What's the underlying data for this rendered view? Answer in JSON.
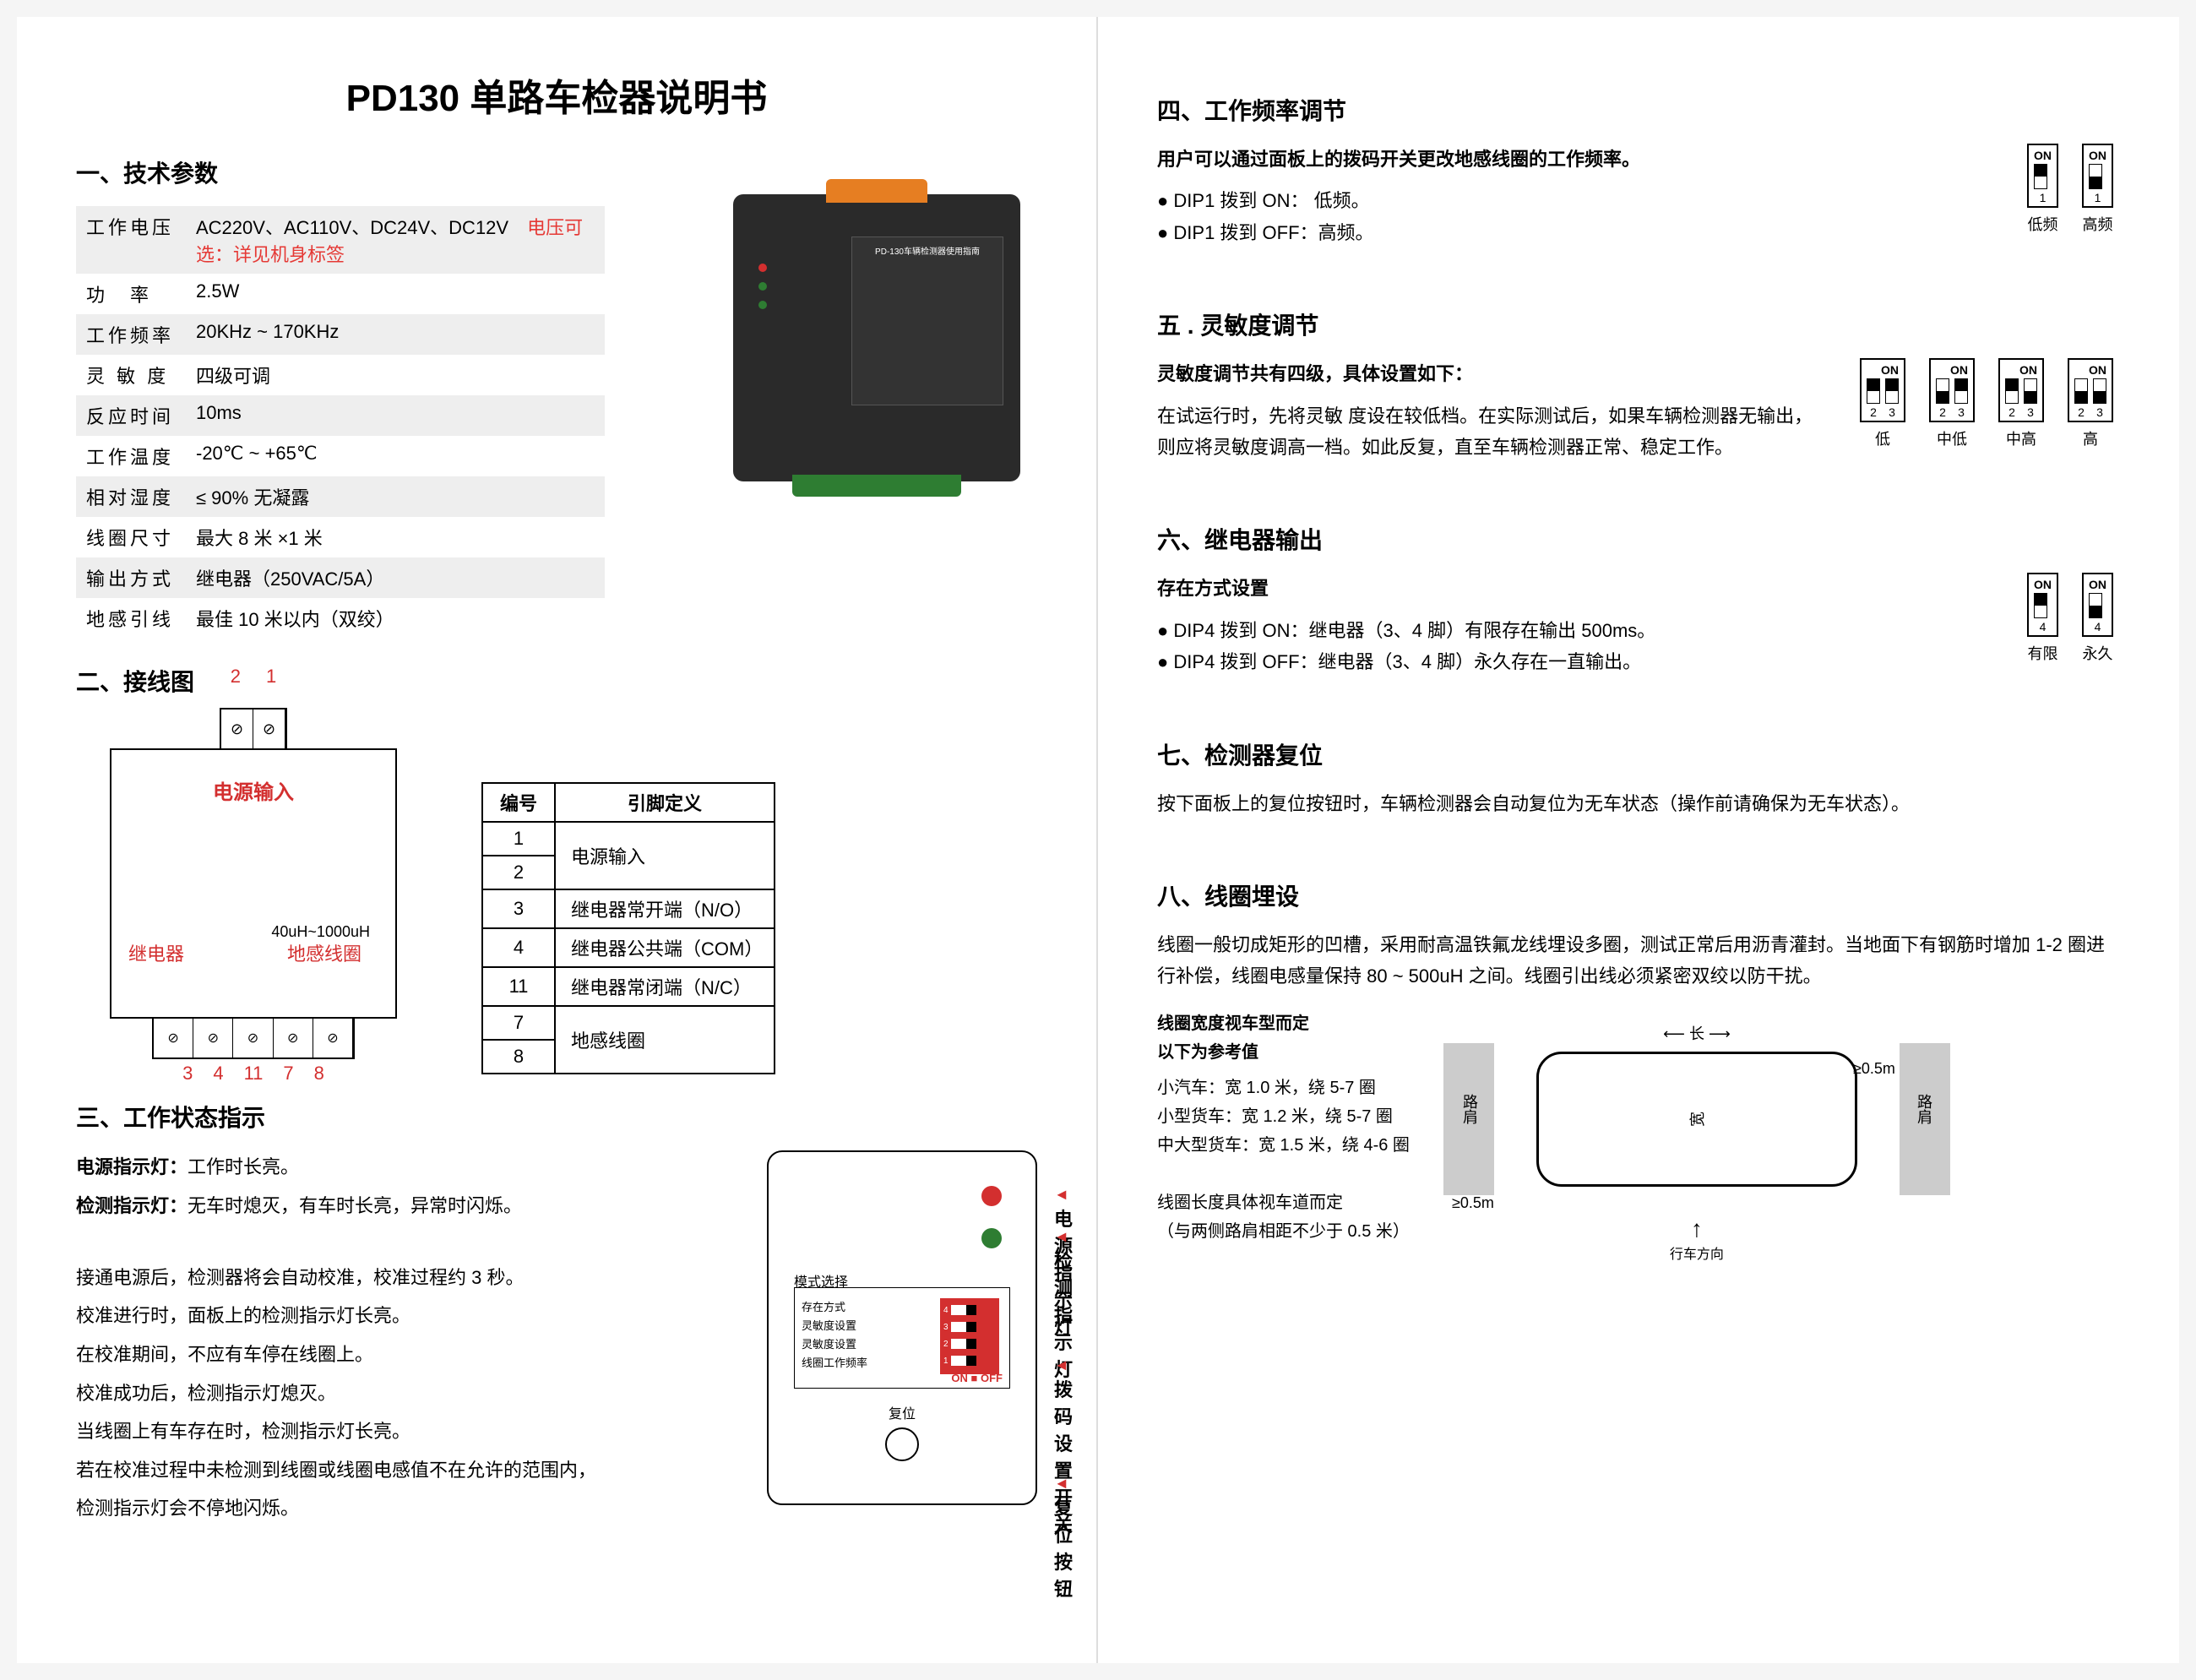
{
  "title": "PD130 单路车检器说明书",
  "sections": {
    "s1": {
      "heading": "一、技术参数"
    },
    "s2": {
      "heading": "二、接线图"
    },
    "s3": {
      "heading": "三、工作状态指示"
    },
    "s4": {
      "heading": "四、工作频率调节"
    },
    "s5": {
      "heading": "五 . 灵敏度调节"
    },
    "s6": {
      "heading": "六、继电器输出"
    },
    "s7": {
      "heading": "七、检测器复位"
    },
    "s8": {
      "heading": "八、线圈埋设"
    }
  },
  "specs": [
    {
      "label": "工作电压",
      "value": "AC220V、AC110V、DC24V、DC12V",
      "note": "电压可选：详见机身标签"
    },
    {
      "label": "功　率",
      "value": "2.5W"
    },
    {
      "label": "工作频率",
      "value": "20KHz ~ 170KHz"
    },
    {
      "label": "灵 敏 度",
      "value": "四级可调"
    },
    {
      "label": "反应时间",
      "value": "10ms"
    },
    {
      "label": "工作温度",
      "value": "-20℃ ~ +65℃"
    },
    {
      "label": "相对湿度",
      "value": "≤ 90% 无凝露"
    },
    {
      "label": "线圈尺寸",
      "value": "最大 8 米 ×1 米"
    },
    {
      "label": "输出方式",
      "value": "继电器（250VAC/5A）"
    },
    {
      "label": "地感引线",
      "value": "最佳 10 米以内（双绞）"
    }
  ],
  "device_label_title": "PD-130车辆检测器使用指南",
  "wiring": {
    "power_input": "电源输入",
    "relay": "继电器",
    "coil": "地感线圈",
    "coil_range": "40uH~1000uH",
    "top_nums": [
      "2",
      "1"
    ],
    "bot_nums": [
      "3",
      "4",
      "11",
      "7",
      "8"
    ]
  },
  "pin_table": {
    "headers": [
      "编号",
      "引脚定义"
    ],
    "rows": [
      {
        "pin": "1",
        "def": "电源输入",
        "rowspan": 2
      },
      {
        "pin": "2"
      },
      {
        "pin": "3",
        "def": "继电器常开端（N/O）"
      },
      {
        "pin": "4",
        "def": "继电器公共端（COM）"
      },
      {
        "pin": "11",
        "def": "继电器常闭端（N/C）"
      },
      {
        "pin": "7",
        "def": "地感线圈",
        "rowspan": 2
      },
      {
        "pin": "8"
      }
    ]
  },
  "status": {
    "power_led_label": "电源指示灯：",
    "power_led_text": "工作时长亮。",
    "detect_led_label": "检测指示灯：",
    "detect_led_text": "无车时熄灭，有车时长亮，异常时闪烁。",
    "para": [
      "接通电源后，检测器将会自动校准，校准过程约 3 秒。",
      "校准进行时，面板上的检测指示灯长亮。",
      "在校准期间，不应有车停在线圈上。",
      "校准成功后，检测指示灯熄灭。",
      "当线圈上有车存在时，检测指示灯长亮。",
      "若在校准过程中未检测到线圈或线圈电感值不在允许的范围内，",
      "检测指示灯会不停地闪烁。"
    ],
    "panel": {
      "mode_select": "模式选择",
      "dip_labels": [
        "存在方式",
        "灵敏度设置",
        "灵敏度设置",
        "线圈工作频率"
      ],
      "dip_onoff": "ON ■ OFF",
      "reset": "复位",
      "annotations": {
        "power_led": "电源指示灯",
        "detect_led": "检测指示灯",
        "dip_switch": "拨码设置开关",
        "reset_btn": "复位按钮"
      }
    }
  },
  "freq": {
    "intro": "用户可以通过面板上的拨码开关更改地感线圈的工作频率。",
    "items": [
      "DIP1 拨到 ON： 低频。",
      "DIP1 拨到 OFF：高频。"
    ],
    "dips": [
      {
        "label": "低频",
        "nums": [
          "1"
        ],
        "positions": [
          "up"
        ]
      },
      {
        "label": "高频",
        "nums": [
          "1"
        ],
        "positions": [
          "down"
        ]
      }
    ]
  },
  "sens": {
    "intro": "灵敏度调节共有四级，具体设置如下：",
    "text": "在试运行时，先将灵敏 度设在较低档。在实际测试后，如果车辆检测器无输出，则应将灵敏度调高一档。如此反复，直至车辆检测器正常、稳定工作。",
    "dips": [
      {
        "label": "低",
        "nums": [
          "2",
          "3"
        ],
        "positions": [
          "up",
          "up"
        ]
      },
      {
        "label": "中低",
        "nums": [
          "2",
          "3"
        ],
        "positions": [
          "down",
          "up"
        ]
      },
      {
        "label": "中高",
        "nums": [
          "2",
          "3"
        ],
        "positions": [
          "up",
          "down"
        ]
      },
      {
        "label": "高",
        "nums": [
          "2",
          "3"
        ],
        "positions": [
          "down",
          "down"
        ]
      }
    ]
  },
  "relay": {
    "subhead": "存在方式设置",
    "items": [
      "DIP4 拨到 ON：继电器（3、4 脚）有限存在输出 500ms。",
      "DIP4 拨到 OFF：继电器（3、4 脚）永久存在一直输出。"
    ],
    "dips": [
      {
        "label": "有限",
        "nums": [
          "4"
        ],
        "positions": [
          "up"
        ]
      },
      {
        "label": "永久",
        "nums": [
          "4"
        ],
        "positions": [
          "down"
        ]
      }
    ]
  },
  "reset": {
    "text": "按下面板上的复位按钮时，车辆检测器会自动复位为无车状态（操作前请确保为无车状态）。"
  },
  "coil": {
    "intro": "线圈一般切成矩形的凹槽，采用耐高温铁氟龙线埋设多圈，测试正常后用沥青灌封。当地面下有钢筋时增加 1-2 圈进行补偿，线圈电感量保持 80 ~ 500uH 之间。线圈引出线必须紧密双绞以防干扰。",
    "ref_head1": "线圈宽度视车型而定",
    "ref_head2": "以下为参考值",
    "refs": [
      "小汽车：宽 1.0 米，绕 5-7 圈",
      "小型货车：宽 1.2 米，绕 5-7 圈",
      "中大型货车：宽 1.5 米，绕 4-6 圈"
    ],
    "len_note1": "线圈长度具体视车道而定",
    "len_note2": "（与两侧路肩相距不少于 0.5 米）",
    "diagram": {
      "shoulder": "路肩",
      "length": "长",
      "width": "宽",
      "margin": "≥0.5m",
      "direction": "行车方向"
    }
  },
  "colors": {
    "red": "#d32f2f",
    "green": "#2e7d32",
    "orange": "#e67e22",
    "grey_bg": "#eeeeee"
  }
}
